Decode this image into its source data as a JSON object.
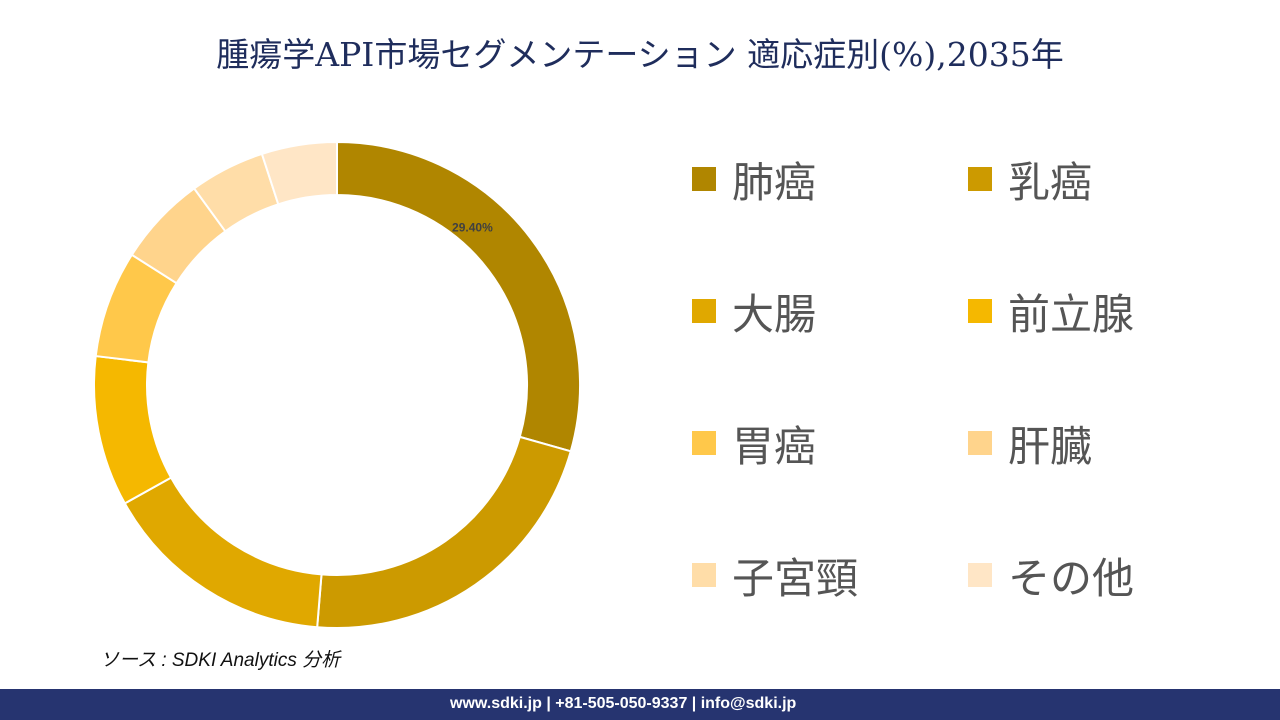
{
  "title": "腫瘍学API市場セグメンテーション 適応症別(%),2035年",
  "chart_data": {
    "type": "pie",
    "variant": "donut",
    "title": "腫瘍学API市場セグメンテーション 適応症別(%),2035年",
    "categories": [
      "肺癌",
      "乳癌",
      "大腸",
      "前立腺",
      "胃癌",
      "肝臓",
      "子宮頸",
      "その他"
    ],
    "values": [
      29.4,
      21.9,
      15.6,
      10.0,
      7.1,
      6.0,
      5.0,
      5.0
    ],
    "data_labels": [
      "29.40%",
      "",
      "",
      "",
      "",
      "",
      "",
      ""
    ],
    "colors": [
      "#b08600",
      "#cc9a00",
      "#e0a800",
      "#f5b800",
      "#ffc84a",
      "#ffd48c",
      "#ffdda8",
      "#ffe6c6"
    ],
    "legend_position": "right"
  },
  "source": "ソース : SDKI Analytics 分析",
  "footer": "www.sdki.jp | +81-505-050-9337 | info@sdki.jp"
}
